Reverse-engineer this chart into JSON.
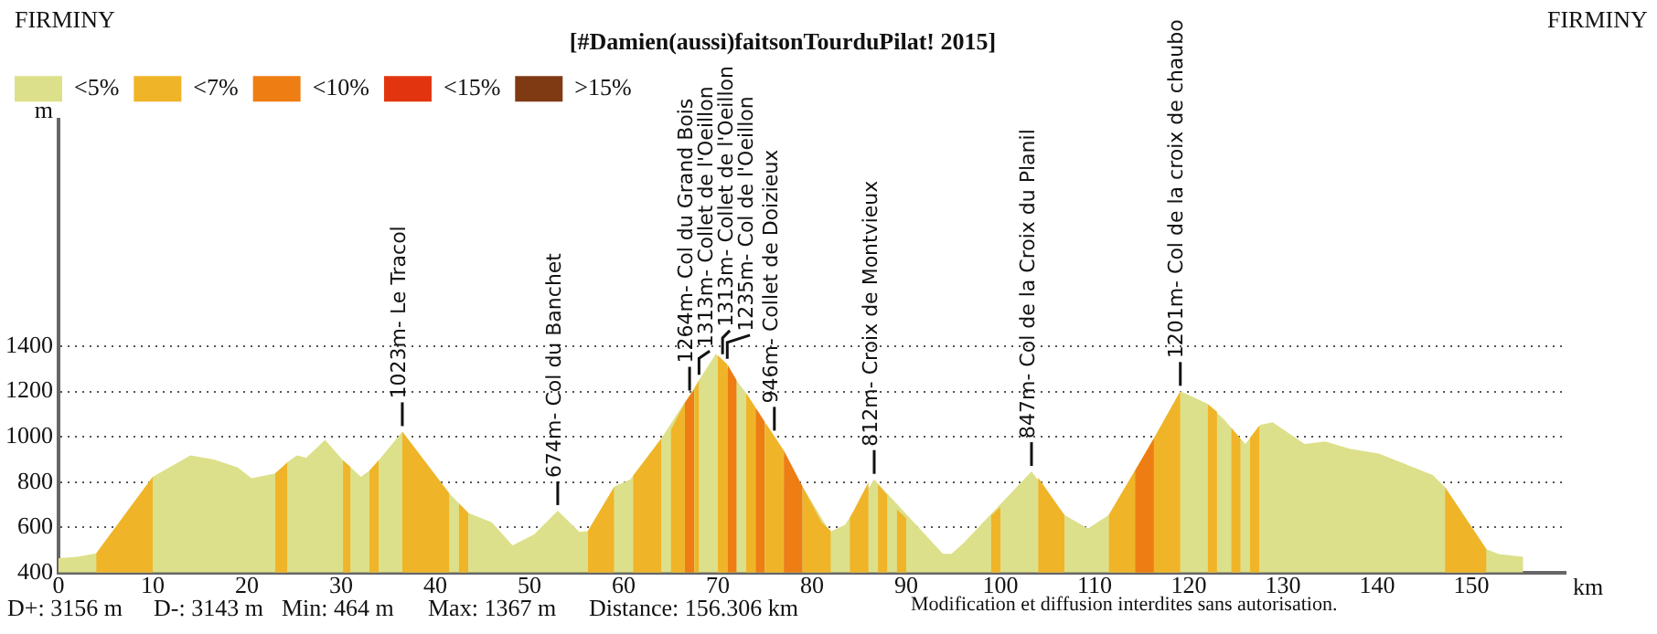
{
  "chart_data": {
    "type": "area",
    "title": "[#Damien(aussi)faitsonTourduPilat! 2015]",
    "xlabel": "km",
    "ylabel": "m",
    "xlim": [
      0,
      160
    ],
    "xticks": [
      0,
      10,
      20,
      30,
      40,
      50,
      60,
      70,
      80,
      90,
      100,
      110,
      120,
      130,
      140,
      150
    ],
    "ylim": [
      400,
      2400
    ],
    "yticks": [
      400,
      600,
      800,
      1000,
      1200,
      1400
    ],
    "grid": "y",
    "legend": "top left",
    "marker": "none",
    "series": [
      {
        "name": "<5%",
        "color": "#dde08a",
        "x": [
          0,
          2,
          4,
          10,
          14,
          16.5,
          19,
          20.5,
          23,
          24.3,
          25.3,
          26.3,
          28.3,
          30.2,
          32.1,
          33,
          34,
          36.5,
          41.5,
          43.5,
          46,
          48.2,
          50.5,
          53,
          55.3,
          56.2,
          59,
          60.7,
          64,
          69.8,
          73,
          81.9,
          83.5,
          86.6,
          93.9,
          94.8,
          96.1,
          103.3,
          106.8,
          109.3,
          111.5,
          116.3,
          119.1,
          121.9,
          123.8,
          126,
          127.6,
          128.9,
          132.3,
          134.5,
          137.1,
          140.2,
          142.7,
          145.9,
          147.2,
          151.6,
          152.9,
          155.5
        ],
        "values": [
          464,
          470,
          485,
          823,
          918,
          900,
          865,
          817,
          838,
          887,
          918,
          908,
          986,
          897,
          823,
          850,
          897,
          1023,
          749,
          664,
          622,
          520,
          569,
          674,
          580,
          584,
          780,
          812,
          992,
          1367,
          1193,
          580,
          611,
          812,
          483,
          483,
          531,
          847,
          654,
          595,
          654,
          993,
          1201,
          1148,
          1074,
          968,
          1053,
          1064,
          968,
          979,
          947,
          926,
          884,
          831,
          778,
          503,
          482,
          470
        ]
      },
      {
        "name": "<7%",
        "color": "#f0b429",
        "x": [
          4,
          10,
          16,
          23,
          24.3,
          27,
          30.2,
          31,
          32,
          33,
          34,
          35,
          36.5,
          41.5,
          42,
          42.5,
          43.5,
          50,
          56.2,
          59,
          60,
          61,
          64,
          64.5,
          65,
          66.5,
          67,
          67.5,
          68,
          69,
          70,
          71,
          72,
          73,
          74,
          74.5,
          75,
          76,
          77,
          78,
          79,
          81,
          82,
          83,
          84,
          86,
          86.5,
          87,
          88,
          88.5,
          89,
          90,
          95,
          99,
          100,
          102,
          104,
          106.8,
          109,
          111.5,
          116.3,
          119.1,
          120,
          122,
          123,
          123.7,
          124.5,
          125.5,
          126,
          126.5,
          127.5,
          137,
          147.2,
          151.6
        ],
        "values": [
          485,
          823,
          null,
          838,
          887,
          null,
          897,
          866,
          null,
          850,
          897,
          null,
          1023,
          749,
          null,
          706,
          664,
          null,
          584,
          780,
          null,
          828,
          992,
          null,
          1030,
          1150,
          null,
          1210,
          1250,
          null,
          1360,
          1320,
          null,
          1193,
          1130,
          null,
          1065,
          1003,
          940,
          null,
          780,
          622,
          585,
          null,
          640,
          800,
          null,
          790,
          740,
          null,
          680,
          640,
          null,
          650,
          690,
          null,
          820,
          654,
          null,
          654,
          993,
          1201,
          null,
          1145,
          1110,
          null,
          1040,
          990,
          null,
          995,
          1050,
          null,
          778,
          503
        ]
      },
      {
        "name": "<10%",
        "color": "#ee7d14",
        "x": [
          66.5,
          67.5,
          69,
          71,
          72,
          73,
          74,
          75,
          76,
          77,
          79,
          100,
          114.3,
          116.3
        ],
        "values": [
          1150,
          1210,
          null,
          1320,
          1250,
          null,
          1130,
          1065,
          null,
          940,
          780,
          null,
          850,
          993
        ]
      },
      {
        "name": "<15%",
        "color": "#e2350f"
      },
      {
        "name": ">15%",
        "color": "#7f3a14"
      }
    ],
    "annotations": [
      "FIRMINY",
      "FIRMINY",
      "D+: 3156 m",
      "D-: 3143 m",
      "Min: 464 m",
      "Max: 1367 m",
      "Distance: 156.306 km",
      "Modification et diffusion interdites sans autorisation.",
      {
        "text": "1023m- Le Tracol",
        "x": 36.5,
        "y": 1023
      },
      {
        "text": "674m- Col du Banchet",
        "x": 53,
        "y": 674
      },
      {
        "text": "1264m- Col du Grand Bois",
        "x": 67,
        "y": 1180
      },
      {
        "text": "1313m- Collet de l'Oeillon",
        "x": 68,
        "y": 1250
      },
      {
        "text": "1313m- Collet de l'Oeillon",
        "x": 70.5,
        "y": 1340
      },
      {
        "text": "1235m- Col de l'Oeillon",
        "x": 71,
        "y": 1320
      },
      {
        "text": "946m- Collet de Doizieux",
        "x": 76,
        "y": 1003
      },
      {
        "text": "812m- Croix de Montvieux",
        "x": 86.6,
        "y": 812
      },
      {
        "text": "847m- Col de la Croix du Planil",
        "x": 103.3,
        "y": 847
      },
      {
        "text": "1201m- Col de la croix de chaubo",
        "x": 119.1,
        "y": 1201
      }
    ]
  }
}
